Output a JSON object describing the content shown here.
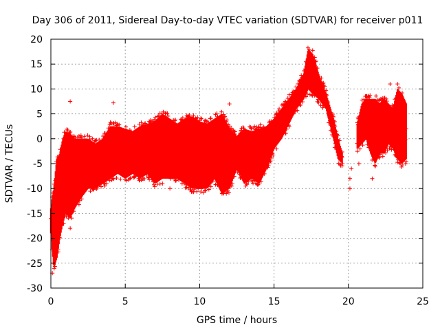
{
  "chart_data": {
    "type": "scatter",
    "title": "Day 306 of 2011, Sidereal Day-to-day VTEC variation (SDTVAR) for receiver p011",
    "xlabel": "GPS time / hours",
    "ylabel": "SDTVAR / TECUs",
    "xlim": [
      0,
      25
    ],
    "ylim": [
      -30,
      20
    ],
    "xticks": [
      0,
      5,
      10,
      15,
      20,
      25
    ],
    "yticks": [
      -30,
      -25,
      -20,
      -15,
      -10,
      -5,
      0,
      5,
      10,
      15,
      20
    ],
    "xtick_labels": [
      "0",
      "5",
      "10",
      "15",
      "20",
      "25"
    ],
    "ytick_labels": [
      "-30",
      "-25",
      "-20",
      "-15",
      "-10",
      "-5",
      "0",
      "5",
      "10",
      "15",
      "20"
    ],
    "grid": true,
    "marker": "+",
    "color": "#ff0000",
    "series": [
      {
        "name": "SDTVAR",
        "envelope": {
          "x": [
            0.0,
            0.2,
            0.4,
            0.6,
            0.8,
            1.0,
            1.3,
            1.6,
            2.0,
            2.5,
            3.0,
            3.5,
            4.0,
            4.5,
            5.0,
            5.5,
            6.0,
            6.5,
            7.0,
            7.5,
            8.0,
            8.5,
            9.0,
            9.5,
            10.0,
            10.5,
            11.0,
            11.5,
            12.0,
            12.5,
            13.0,
            13.5,
            14.0,
            14.5,
            15.0,
            15.5,
            16.0,
            16.5,
            17.0,
            17.3,
            17.6,
            18.0,
            18.5,
            19.0,
            19.3,
            19.6
          ],
          "upper": [
            -14,
            -10,
            -4,
            -3,
            0,
            1.5,
            1,
            0,
            0,
            0,
            -1,
            0,
            2.5,
            2.5,
            2,
            1.5,
            2.5,
            3,
            3.5,
            5,
            4,
            3,
            4,
            4.5,
            3.5,
            3,
            4,
            5,
            2,
            0.5,
            2,
            1.5,
            2,
            2.5,
            4,
            6,
            8,
            10,
            13,
            18,
            17,
            13,
            9,
            4,
            0,
            -3
          ],
          "lower": [
            -19,
            -26,
            -24,
            -20,
            -17,
            -15,
            -16,
            -14,
            -12,
            -10,
            -10,
            -9,
            -8,
            -7,
            -8,
            -7,
            -8,
            -7,
            -9,
            -8,
            -8,
            -8,
            -9,
            -10,
            -10,
            -10,
            -8,
            -11,
            -10,
            -6,
            -9,
            -8,
            -9,
            -6,
            -2,
            0,
            3,
            6,
            8,
            10,
            9,
            8,
            6,
            0,
            -4,
            -5
          ]
        },
        "cluster": {
          "x": [
            20.6,
            20.9,
            21.2,
            21.5,
            21.8,
            22.1,
            22.4,
            22.7,
            23.0,
            23.3,
            23.6,
            23.9
          ],
          "upper": [
            3,
            7,
            8,
            8,
            8,
            7,
            8,
            7,
            6,
            10,
            9,
            7
          ],
          "lower": [
            -2,
            -1,
            0,
            -3,
            -5,
            -3,
            -3,
            -1,
            -2,
            -4,
            -5,
            -4
          ]
        },
        "outliers": [
          {
            "x": 1.3,
            "y": 7.5
          },
          {
            "x": 4.2,
            "y": 7.2
          },
          {
            "x": 0.1,
            "y": -27
          },
          {
            "x": 1.3,
            "y": -18
          },
          {
            "x": 7.5,
            "y": -9
          },
          {
            "x": 12.0,
            "y": 7
          },
          {
            "x": 19.6,
            "y": -5
          },
          {
            "x": 20.1,
            "y": -8
          },
          {
            "x": 20.1,
            "y": -10
          },
          {
            "x": 20.2,
            "y": -6
          },
          {
            "x": 20.7,
            "y": -5
          },
          {
            "x": 21.6,
            "y": -8
          },
          {
            "x": 22.8,
            "y": 11
          },
          {
            "x": 23.3,
            "y": 11
          },
          {
            "x": 11.5,
            "y": -11
          },
          {
            "x": 8.0,
            "y": -10
          }
        ]
      }
    ]
  }
}
